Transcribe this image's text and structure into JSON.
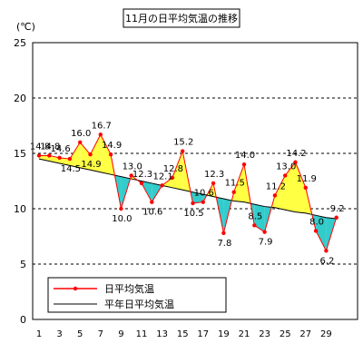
{
  "chart_data": {
    "type": "line",
    "title": "11月の日平均気温の推移",
    "ylabel": "(℃)",
    "xlabel": "",
    "ylim": [
      0,
      25
    ],
    "yticks": [
      0,
      5,
      10,
      15,
      20,
      25
    ],
    "xticks": [
      1,
      3,
      5,
      7,
      9,
      11,
      13,
      15,
      17,
      19,
      21,
      23,
      25,
      27,
      29
    ],
    "grid": "horizontal-dashed",
    "legend_placement": "bottom-left",
    "colors": {
      "above": "#ffff44",
      "below": "#33cccc",
      "daily": "#ff0000",
      "normal": "#000000"
    },
    "x": [
      1,
      2,
      3,
      4,
      5,
      6,
      7,
      8,
      9,
      10,
      11,
      12,
      13,
      14,
      15,
      16,
      17,
      18,
      19,
      20,
      21,
      22,
      23,
      24,
      25,
      26,
      27,
      28,
      29,
      30
    ],
    "series": [
      {
        "name": "日平均気温",
        "values": [
          14.8,
          14.8,
          14.6,
          14.5,
          16.0,
          14.9,
          16.7,
          14.9,
          10.0,
          13.0,
          12.3,
          10.6,
          12.1,
          12.8,
          15.2,
          10.5,
          10.6,
          12.3,
          7.8,
          11.5,
          14.0,
          8.5,
          7.9,
          11.2,
          13.0,
          14.2,
          11.9,
          8.0,
          6.2,
          9.2
        ]
      },
      {
        "name": "平年日平均気温",
        "values": [
          14.5,
          14.3,
          14.1,
          13.9,
          13.7,
          13.5,
          13.3,
          13.1,
          12.9,
          12.7,
          12.5,
          12.3,
          12.1,
          11.9,
          11.7,
          11.5,
          11.3,
          11.1,
          10.9,
          10.7,
          10.6,
          10.4,
          10.2,
          10.1,
          9.9,
          9.7,
          9.6,
          9.4,
          9.2,
          9.1
        ]
      }
    ],
    "data_labels": [
      "14.8",
      "14.8",
      "14.6",
      "14.5",
      "16.0",
      "14.9",
      "16.7",
      "14.9",
      "10.0",
      "13.0",
      "12.3",
      "10.6",
      "12.1",
      "12.8",
      "15.2",
      "10.5",
      "10.6",
      "12.3",
      "7.8",
      "11.5",
      "14.0",
      "8.5",
      "7.9",
      "11.2",
      "13.0",
      "14.2",
      "11.9",
      "8.0",
      "6.2",
      "9.2"
    ]
  }
}
